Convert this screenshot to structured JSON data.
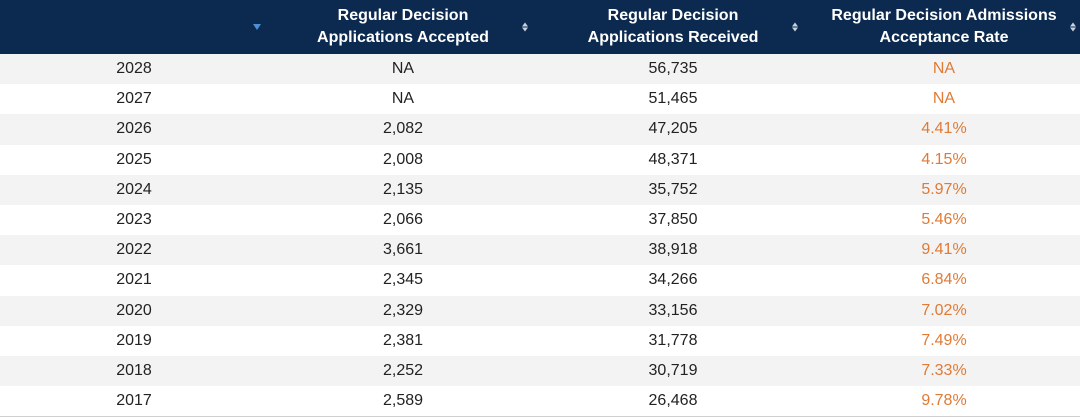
{
  "colors": {
    "header_bg": "#0c2a50",
    "rate_text": "#e07a35",
    "sort_active": "#4a8fd8"
  },
  "header": {
    "year_label": "",
    "accepted_label_line1": "Regular Decision",
    "accepted_label_line2": "Applications Accepted",
    "received_label_line1": "Regular Decision",
    "received_label_line2": "Applications Received",
    "rate_label_line1": "Regular Decision Admissions",
    "rate_label_line2": "Acceptance Rate"
  },
  "rows": [
    {
      "year": "2028",
      "accepted": "NA",
      "received": "56,735",
      "rate": "NA"
    },
    {
      "year": "2027",
      "accepted": "NA",
      "received": "51,465",
      "rate": "NA"
    },
    {
      "year": "2026",
      "accepted": "2,082",
      "received": "47,205",
      "rate": "4.41%"
    },
    {
      "year": "2025",
      "accepted": "2,008",
      "received": "48,371",
      "rate": "4.15%"
    },
    {
      "year": "2024",
      "accepted": "2,135",
      "received": "35,752",
      "rate": "5.97%"
    },
    {
      "year": "2023",
      "accepted": "2,066",
      "received": "37,850",
      "rate": "5.46%"
    },
    {
      "year": "2022",
      "accepted": "3,661",
      "received": "38,918",
      "rate": "9.41%"
    },
    {
      "year": "2021",
      "accepted": "2,345",
      "received": "34,266",
      "rate": "6.84%"
    },
    {
      "year": "2020",
      "accepted": "2,329",
      "received": "33,156",
      "rate": "7.02%"
    },
    {
      "year": "2019",
      "accepted": "2,381",
      "received": "31,778",
      "rate": "7.49%"
    },
    {
      "year": "2018",
      "accepted": "2,252",
      "received": "30,719",
      "rate": "7.33%"
    },
    {
      "year": "2017",
      "accepted": "2,589",
      "received": "26,468",
      "rate": "9.78%"
    }
  ]
}
